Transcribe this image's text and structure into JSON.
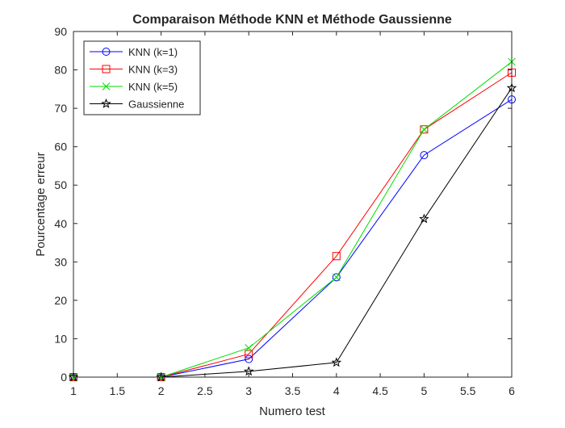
{
  "chart_data": {
    "type": "line",
    "title": "Comparaison Méthode KNN et Méthode Gaussienne",
    "xlabel": "Numero test",
    "ylabel": "Pourcentage erreur",
    "xlim": [
      1,
      6
    ],
    "ylim": [
      0,
      90
    ],
    "xticks": [
      1,
      1.5,
      2,
      2.5,
      3,
      3.5,
      4,
      4.5,
      5,
      5.5,
      6
    ],
    "yticks": [
      0,
      10,
      20,
      30,
      40,
      50,
      60,
      70,
      80,
      90
    ],
    "x": [
      1,
      2,
      3,
      4,
      5,
      6
    ],
    "grid": false,
    "legend_position": "top-left",
    "series": [
      {
        "name": "KNN (k=1)",
        "color": "#0000ff",
        "marker": "circle",
        "values": [
          0,
          0,
          4.7,
          26,
          57.8,
          72.3
        ]
      },
      {
        "name": "KNN (k=3)",
        "color": "#ff0000",
        "marker": "square",
        "values": [
          0,
          0,
          6,
          31.5,
          64.5,
          79.3
        ]
      },
      {
        "name": "KNN (k=5)",
        "color": "#00dd00",
        "marker": "x",
        "values": [
          0,
          0,
          7.6,
          26,
          64.5,
          82.1
        ]
      },
      {
        "name": "Gaussienne",
        "color": "#000000",
        "marker": "star",
        "values": [
          0,
          0,
          1.5,
          3.8,
          41.2,
          75.3
        ]
      }
    ]
  }
}
